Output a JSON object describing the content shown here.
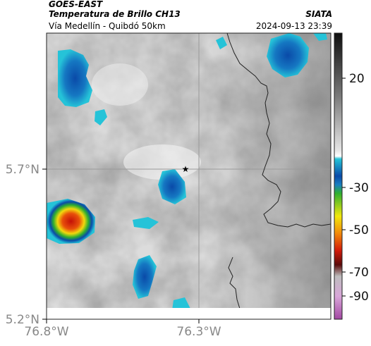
{
  "header": {
    "satellite": "GOES-EAST",
    "product": "Temperatura de Brillo CH13",
    "route": "Vía Medellín - Quibdó 50km",
    "org": "SIATA",
    "datetime": "2024-09-13 23:39"
  },
  "axes": {
    "x_ticks": [
      {
        "lon": -76.8,
        "label": "76.8°W"
      },
      {
        "lon": -76.3,
        "label": "76.3°W"
      }
    ],
    "y_ticks": [
      {
        "lat": 5.7,
        "label": "5.7°N"
      },
      {
        "lat": 5.2,
        "label": "5.2°N"
      }
    ]
  },
  "colorbar": {
    "ticks": [
      {
        "value": 20,
        "label": "20"
      },
      {
        "value": -30,
        "label": "-30"
      },
      {
        "value": -50,
        "label": "-50"
      },
      {
        "value": -70,
        "label": "-70"
      },
      {
        "value": -90,
        "label": "-90"
      }
    ],
    "colors": {
      "warm_top": "#111111",
      "gray_mid": "#8a8a8a",
      "white": "#ffffff",
      "cyan": "#25c3d8",
      "blue": "#0a4aa8",
      "green": "#2faf2f",
      "yellow": "#f2e80d",
      "orange": "#f38a0a",
      "red": "#d21a0a",
      "maroon": "#5a0a0a",
      "gray_low": "#c8c8c8",
      "magenta": "#b04bb0"
    }
  },
  "marker": {
    "symbol": "★",
    "name": "location-star"
  },
  "gridlines": {
    "lon": -76.3,
    "lat": 5.7
  }
}
